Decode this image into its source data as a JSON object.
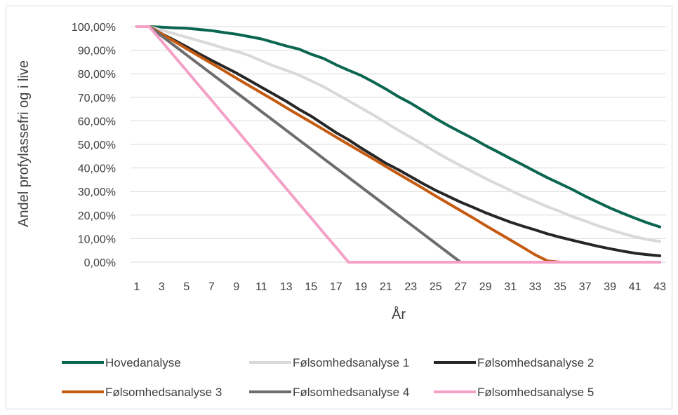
{
  "chart_data": {
    "type": "line",
    "title": "",
    "xlabel": "År",
    "ylabel": "Andel profylassefri og i live",
    "x": [
      1,
      2,
      3,
      4,
      5,
      6,
      7,
      8,
      9,
      10,
      11,
      12,
      13,
      14,
      15,
      16,
      17,
      18,
      19,
      20,
      21,
      22,
      23,
      24,
      25,
      26,
      27,
      28,
      29,
      30,
      31,
      32,
      33,
      34,
      35,
      36,
      37,
      38,
      39,
      40,
      41,
      42,
      43
    ],
    "x_tick_labels": [
      "1",
      "3",
      "5",
      "7",
      "9",
      "11",
      "13",
      "15",
      "17",
      "19",
      "21",
      "23",
      "25",
      "27",
      "29",
      "31",
      "33",
      "35",
      "37",
      "39",
      "41",
      "43"
    ],
    "y_tick_labels": [
      "100,00%",
      "90,00%",
      "80,00%",
      "70,00%",
      "60,00%",
      "50,00%",
      "40,00%",
      "30,00%",
      "20,00%",
      "10,00%",
      "0,00%"
    ],
    "ylim": [
      0,
      100
    ],
    "grid": "horizontal",
    "legend_position": "bottom",
    "series": [
      {
        "name": "Hovedanalyse",
        "color": "#0a6650",
        "values": [
          100,
          100,
          99.8,
          99.5,
          99.3,
          98.8,
          98.3,
          97.5,
          96.8,
          95.8,
          94.8,
          93.3,
          91.8,
          90.5,
          88.3,
          86.5,
          83.8,
          81.5,
          79.3,
          76.5,
          73.5,
          70.3,
          67.5,
          64.3,
          61,
          58,
          55.2,
          52.5,
          49.5,
          46.8,
          44,
          41.3,
          38.5,
          35.8,
          33.3,
          30.8,
          28,
          25.5,
          23,
          20.8,
          18.7,
          16.7,
          15
        ]
      },
      {
        "name": "Følsomhedsanalyse 1",
        "color": "#d9d9d9",
        "values": [
          100,
          100,
          98.5,
          97,
          95.5,
          94,
          92.5,
          90.8,
          89.5,
          87.8,
          85.5,
          83.3,
          81.5,
          79.5,
          77,
          74.5,
          71.5,
          68.5,
          65.5,
          62.5,
          59.3,
          56,
          53,
          50,
          46.8,
          43.8,
          41,
          38.3,
          35.5,
          33,
          30.5,
          28,
          25.8,
          23.5,
          21.5,
          19.3,
          17.5,
          15.5,
          13.8,
          12.2,
          10.8,
          9.6,
          8.8
        ]
      },
      {
        "name": "Følsomhedsanalyse 2",
        "color": "#262626",
        "values": [
          100,
          100,
          97,
          94.3,
          91.5,
          88.5,
          85.7,
          83,
          80.3,
          77.3,
          74.3,
          71.3,
          68.3,
          65,
          62,
          58.5,
          55,
          52,
          48.5,
          45.3,
          42,
          39.3,
          36.3,
          33.3,
          30.5,
          28,
          25.5,
          23.3,
          21,
          19,
          17,
          15.3,
          13.7,
          12,
          10.6,
          9.3,
          8,
          6.8,
          5.7,
          4.7,
          3.8,
          3.2,
          2.7
        ]
      },
      {
        "name": "Følsomhedsanalyse 3",
        "color": "#c55a11",
        "values": [
          100,
          100,
          96.9,
          93.8,
          90.6,
          87.5,
          84.4,
          81.3,
          78.1,
          75,
          71.9,
          68.8,
          65.6,
          62.5,
          59.4,
          56.3,
          53.1,
          50,
          46.9,
          43.8,
          40.6,
          37.5,
          34.4,
          31.3,
          28.1,
          25,
          21.9,
          18.8,
          15.6,
          12.5,
          9.4,
          6.3,
          3.1,
          0.5,
          0,
          0,
          0,
          0,
          0,
          0,
          0,
          0,
          0
        ]
      },
      {
        "name": "Følsomhedsanalyse 4",
        "color": "#6d6d6d",
        "values": [
          100,
          100,
          96,
          92,
          88,
          84,
          80,
          76,
          72,
          68,
          64,
          60,
          56,
          52,
          48,
          44,
          40,
          36,
          32,
          28,
          24,
          20,
          16,
          12,
          8,
          4,
          0,
          0,
          0,
          0,
          0,
          0,
          0,
          0,
          0,
          0,
          0,
          0,
          0,
          0,
          0,
          0,
          0
        ]
      },
      {
        "name": "Følsomhedsanalyse 5",
        "color": "#f4a0c7",
        "values": [
          100,
          100,
          93.8,
          87.5,
          81.3,
          75,
          68.8,
          62.5,
          56.3,
          50,
          43.8,
          37.5,
          31.3,
          25,
          18.8,
          12.5,
          6.3,
          0,
          0,
          0,
          0,
          0,
          0,
          0,
          0,
          0,
          0,
          0,
          0,
          0,
          0,
          0,
          0,
          0,
          0,
          0,
          0,
          0,
          0,
          0,
          0,
          0,
          0
        ]
      }
    ]
  }
}
